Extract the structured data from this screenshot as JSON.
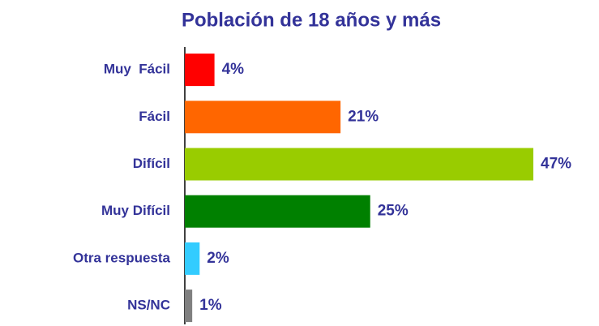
{
  "chart_data": {
    "type": "barh",
    "title": "Población de 18 años y más",
    "categories": [
      "Muy  Fácil",
      "Fácil",
      "Difícil",
      "Muy Difícil",
      "Otra respuesta",
      "NS/NC"
    ],
    "values": [
      4,
      21,
      47,
      25,
      2,
      1
    ],
    "value_labels": [
      "4%",
      "21%",
      "47%",
      "25%",
      "2%",
      "1%"
    ],
    "colors": [
      "#ff0000",
      "#ff6600",
      "#99cc00",
      "#008000",
      "#33ccff",
      "#808080"
    ]
  }
}
